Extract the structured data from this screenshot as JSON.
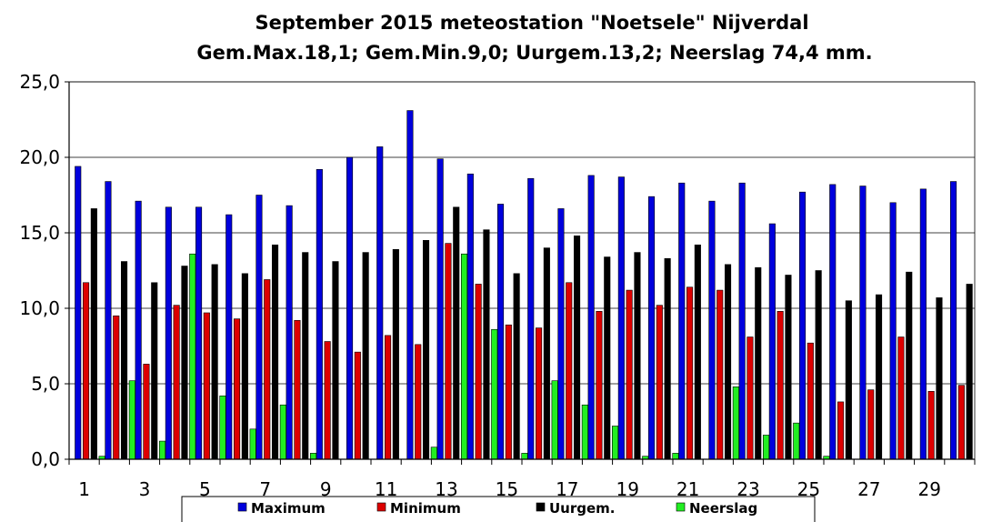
{
  "chart_data": {
    "type": "bar",
    "title": "September 2015 meteostation \"Noetsele\" Nijverdal",
    "subtitle": "Gem.Max.18,1; Gem.Min.9,0; Uurgem.13,2;  Neerslag 74,4 mm.",
    "ylim": [
      0,
      25
    ],
    "yticks": [
      "0,0",
      "5,0",
      "10,0",
      "15,0",
      "20,0",
      "25,0"
    ],
    "grid": true,
    "legend_position": "bottom",
    "categories": [
      "1",
      "2",
      "3",
      "4",
      "5",
      "6",
      "7",
      "8",
      "9",
      "10",
      "11",
      "12",
      "13",
      "14",
      "15",
      "16",
      "17",
      "18",
      "19",
      "20",
      "21",
      "22",
      "23",
      "24",
      "25",
      "26",
      "27",
      "28",
      "29",
      "30"
    ],
    "xtick_labels": [
      "1",
      "",
      "3",
      "",
      "5",
      "",
      "7",
      "",
      "9",
      "",
      "11",
      "",
      "13",
      "",
      "15",
      "",
      "17",
      "",
      "19",
      "",
      "21",
      "",
      "23",
      "",
      "25",
      "",
      "27",
      "",
      "29",
      ""
    ],
    "series": [
      {
        "name": "Maximum",
        "color": "#0000dd",
        "values": [
          19.4,
          18.4,
          17.1,
          16.7,
          16.7,
          16.2,
          17.5,
          16.8,
          19.2,
          20.0,
          20.7,
          23.1,
          19.9,
          18.9,
          16.9,
          18.6,
          16.6,
          18.8,
          18.7,
          17.4,
          18.3,
          17.1,
          18.3,
          15.6,
          17.7,
          18.2,
          18.1,
          17.0,
          17.9,
          18.4
        ]
      },
      {
        "name": "Minimum",
        "color": "#dd0000",
        "values": [
          11.7,
          9.5,
          6.3,
          10.2,
          9.7,
          9.3,
          11.9,
          9.2,
          7.8,
          7.1,
          8.2,
          7.6,
          14.3,
          11.6,
          8.9,
          8.7,
          11.7,
          9.8,
          11.2,
          10.2,
          11.4,
          11.2,
          8.1,
          9.8,
          7.7,
          3.8,
          4.6,
          8.1,
          4.5,
          4.9
        ]
      },
      {
        "name": "Uurgem.",
        "color": "#000000",
        "values": [
          16.6,
          13.1,
          11.7,
          12.8,
          12.9,
          12.3,
          14.2,
          13.7,
          13.1,
          13.7,
          13.9,
          14.5,
          16.7,
          15.2,
          12.3,
          14.0,
          14.8,
          13.4,
          13.7,
          13.3,
          14.2,
          12.9,
          12.7,
          12.2,
          12.5,
          10.5,
          10.9,
          12.4,
          10.7,
          11.6
        ]
      },
      {
        "name": "Neerslag",
        "color": "#22ee22",
        "values": [
          0.2,
          5.2,
          1.2,
          13.6,
          4.2,
          2.0,
          3.6,
          0.4,
          0,
          0,
          0,
          0.8,
          13.6,
          8.6,
          0.4,
          5.2,
          3.6,
          2.2,
          0.2,
          0.4,
          0,
          4.8,
          1.6,
          2.4,
          0.2,
          0,
          0,
          0,
          0,
          0
        ]
      }
    ]
  }
}
